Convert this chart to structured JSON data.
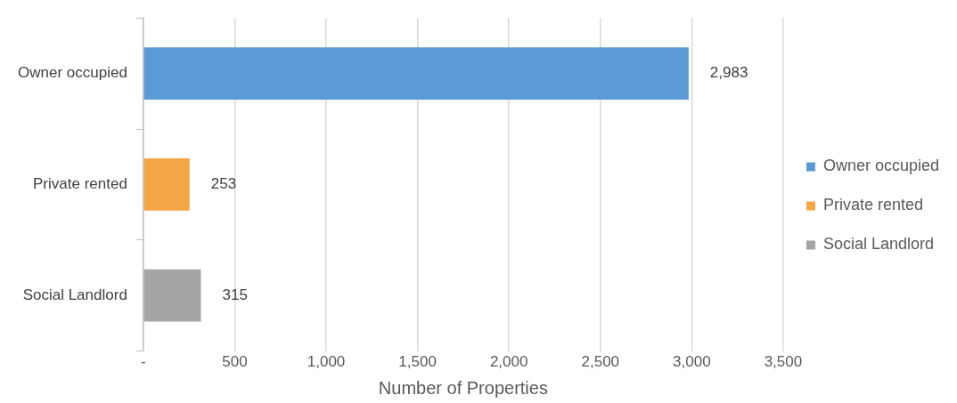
{
  "chart_data": {
    "type": "bar",
    "orientation": "horizontal",
    "xlabel": "Number of Properties",
    "categories": [
      "Owner occupied",
      "Private rented",
      "Social Landlord"
    ],
    "series": [
      {
        "name": "Owner occupied",
        "color": "#5b9bd5",
        "values": [
          2983,
          null,
          null
        ],
        "value_labels": [
          "2,983",
          null,
          null
        ]
      },
      {
        "name": "Private rented",
        "color": "#f4a646",
        "values": [
          null,
          253,
          null
        ],
        "value_labels": [
          null,
          "253",
          null
        ]
      },
      {
        "name": "Social Landlord",
        "color": "#a5a5a5",
        "values": [
          null,
          null,
          315
        ],
        "value_labels": [
          null,
          null,
          "315"
        ]
      }
    ],
    "xlim": [
      0,
      3500
    ],
    "xticks": [
      {
        "value": 0,
        "label": "-"
      },
      {
        "value": 500,
        "label": "500"
      },
      {
        "value": 1000,
        "label": "1,000"
      },
      {
        "value": 1500,
        "label": "1,500"
      },
      {
        "value": 2000,
        "label": "2,000"
      },
      {
        "value": 2500,
        "label": "2,500"
      },
      {
        "value": 3000,
        "label": "3,000"
      },
      {
        "value": 3500,
        "label": "3,500"
      }
    ],
    "grid": "x",
    "legend": "right"
  }
}
